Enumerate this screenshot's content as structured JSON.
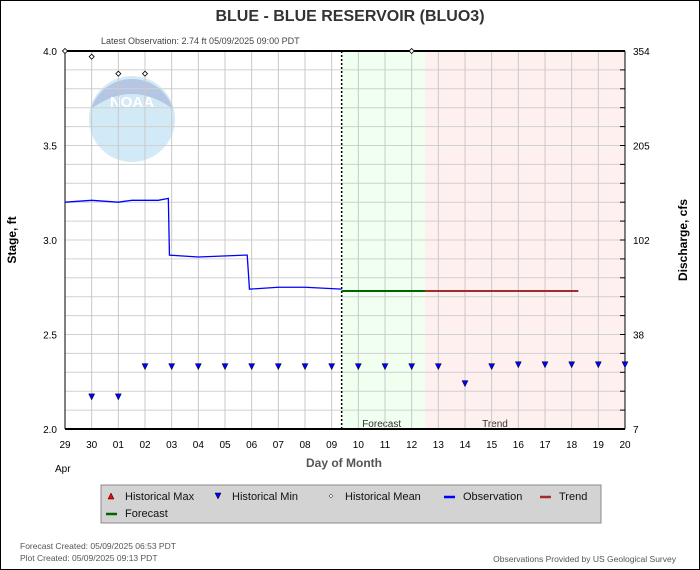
{
  "chart_data": {
    "type": "line",
    "title": "BLUE - BLUE RESERVOIR  (BLUO3)",
    "subtitle": "Latest Observation: 2.74 ft 05/09/2025 09:00 PDT",
    "xlabel": "Day of Month",
    "ylabel": "Stage, ft",
    "y2label": "Discharge, cfs",
    "month_label": "Apr",
    "xlim": [
      "2025-04-29T00:00",
      "2025-05-20T00:00"
    ],
    "ylim": [
      2.0,
      4.0
    ],
    "x_ticks": [
      "29",
      "30",
      "01",
      "02",
      "03",
      "04",
      "05",
      "06",
      "07",
      "08",
      "09",
      "10",
      "11",
      "12",
      "13",
      "14",
      "15",
      "16",
      "17",
      "18",
      "19",
      "20"
    ],
    "y_ticks": [
      "2.0",
      "2.5",
      "3.0",
      "3.5",
      "4.0"
    ],
    "y2_ticks": [
      {
        "stage": 2.0,
        "label": "7"
      },
      {
        "stage": 2.5,
        "label": "38"
      },
      {
        "stage": 3.0,
        "label": "102"
      },
      {
        "stage": 3.5,
        "label": "205"
      },
      {
        "stage": 4.0,
        "label": "354"
      }
    ],
    "grid": true,
    "regions": [
      {
        "name": "Forecast",
        "start": "2025-05-09T09:00",
        "end": "2025-05-12T12:00",
        "color": "#f0fff0"
      },
      {
        "name": "Trend",
        "start": "2025-05-12T12:00",
        "end": "2025-05-20T00:00",
        "color": "#fff0f0"
      }
    ],
    "series": [
      {
        "name": "Observation",
        "color": "#0000ff",
        "points": [
          [
            "2025-04-29T00:00",
            3.2
          ],
          [
            "2025-04-30T00:00",
            3.21
          ],
          [
            "2025-05-01T00:00",
            3.2
          ],
          [
            "2025-05-01T12:00",
            3.21
          ],
          [
            "2025-05-02T12:00",
            3.21
          ],
          [
            "2025-05-02T21:00",
            3.22
          ],
          [
            "2025-05-02T22:00",
            2.92
          ],
          [
            "2025-05-04T00:00",
            2.91
          ],
          [
            "2025-05-05T18:00",
            2.92
          ],
          [
            "2025-05-05T20:00",
            2.92
          ],
          [
            "2025-05-05T22:00",
            2.74
          ],
          [
            "2025-05-07T00:00",
            2.75
          ],
          [
            "2025-05-08T00:00",
            2.75
          ],
          [
            "2025-05-09T09:00",
            2.74
          ]
        ]
      },
      {
        "name": "Forecast",
        "color": "#006400",
        "points": [
          [
            "2025-05-09T09:00",
            2.73
          ],
          [
            "2025-05-12T12:00",
            2.73
          ]
        ]
      },
      {
        "name": "Trend",
        "color": "#a52a2a",
        "points": [
          [
            "2025-05-12T12:00",
            2.73
          ],
          [
            "2025-05-18T06:00",
            2.73
          ]
        ]
      }
    ],
    "historical_min": [
      [
        "2025-04-30",
        2.17
      ],
      [
        "2025-05-01",
        2.17
      ],
      [
        "2025-05-02",
        2.33
      ],
      [
        "2025-05-03",
        2.33
      ],
      [
        "2025-05-04",
        2.33
      ],
      [
        "2025-05-05",
        2.33
      ],
      [
        "2025-05-06",
        2.33
      ],
      [
        "2025-05-07",
        2.33
      ],
      [
        "2025-05-08",
        2.33
      ],
      [
        "2025-05-09",
        2.33
      ],
      [
        "2025-05-10",
        2.33
      ],
      [
        "2025-05-11",
        2.33
      ],
      [
        "2025-05-12",
        2.33
      ],
      [
        "2025-05-13",
        2.33
      ],
      [
        "2025-05-14",
        2.24
      ],
      [
        "2025-05-15",
        2.33
      ],
      [
        "2025-05-16",
        2.34
      ],
      [
        "2025-05-17",
        2.34
      ],
      [
        "2025-05-18",
        2.34
      ],
      [
        "2025-05-19",
        2.34
      ],
      [
        "2025-05-20",
        2.34
      ]
    ],
    "historical_mean": [
      [
        "2025-04-29",
        4.0
      ],
      [
        "2025-04-30",
        3.97
      ],
      [
        "2025-05-01",
        3.88
      ],
      [
        "2025-05-02",
        3.88
      ],
      [
        "2025-05-12",
        4.0
      ]
    ],
    "legend": {
      "placement": "bottom",
      "items": [
        {
          "label": "Historical Max",
          "symbol": "triangle-up",
          "color": "#ff0000"
        },
        {
          "label": "Historical Min",
          "symbol": "triangle-down",
          "color": "#0000ff"
        },
        {
          "label": "Historical Mean",
          "symbol": "diamond",
          "color": "#000000"
        },
        {
          "label": "Observation",
          "symbol": "line",
          "color": "#0000ff"
        },
        {
          "label": "Trend",
          "symbol": "line",
          "color": "#a52a2a"
        },
        {
          "label": "Forecast",
          "symbol": "line",
          "color": "#006400"
        }
      ]
    }
  },
  "footer": {
    "forecast_created": "Forecast Created: 05/09/2025 06:53 PDT",
    "plot_created": "Plot Created: 05/09/2025 09:13 PDT",
    "credit": "Observations Provided by US Geological Survey"
  },
  "logo": {
    "text": "NOAA"
  }
}
